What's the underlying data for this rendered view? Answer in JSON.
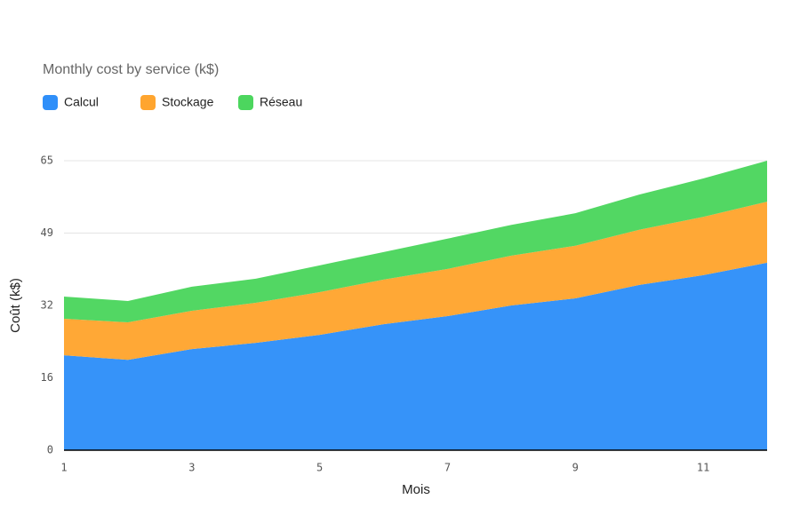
{
  "chart_data": {
    "type": "stacked_area",
    "title": "Monthly cost by service (k$)",
    "x_label": "Mois",
    "y_label": "Coût (k$)",
    "x": [
      1,
      2,
      3,
      4,
      5,
      6,
      7,
      8,
      9,
      10,
      11,
      12
    ],
    "series": [
      {
        "name": "Calcul",
        "color": "#2f8ff9",
        "values": [
          21.3,
          20.3,
          22.7,
          24.1,
          25.9,
          28.3,
          30.1,
          32.5,
          34.1,
          37.1,
          39.3,
          42.1
        ]
      },
      {
        "name": "Stockage",
        "color": "#ffa52f",
        "values": [
          8.2,
          8.4,
          8.6,
          9.0,
          9.6,
          10.0,
          10.6,
          11.2,
          11.8,
          12.4,
          13.1,
          13.7
        ]
      },
      {
        "name": "Réseau",
        "color": "#4cd65e",
        "values": [
          5.0,
          4.8,
          5.4,
          5.4,
          6.0,
          6.2,
          6.8,
          6.9,
          7.3,
          7.9,
          8.6,
          9.2
        ]
      }
    ],
    "xlim": [
      1,
      12
    ],
    "xticks": [
      1,
      3,
      5,
      7,
      9,
      11
    ],
    "ylim": [
      0,
      65
    ],
    "yticks": [
      0,
      {
        "value": 16.25,
        "label": "16"
      },
      {
        "value": 32.5,
        "label": "32"
      },
      {
        "value": 48.75,
        "label": "49"
      },
      65
    ],
    "grid": true,
    "legend": "top-left"
  }
}
